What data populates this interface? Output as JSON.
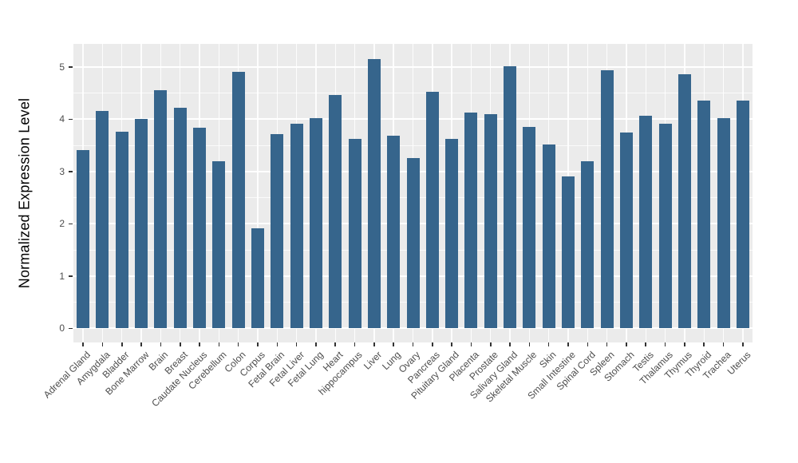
{
  "figure": {
    "y_axis_title": "Normalized Expression Level",
    "colors": {
      "bar": "#36658C",
      "panel_background": "#EBEBEB",
      "grid": "#FFFFFF",
      "tick_text": "#4D4D4D",
      "axis_title_text": "#000000",
      "page_background": "#FFFFFF",
      "tick_mark": "#333333"
    }
  },
  "chart_data": {
    "type": "bar",
    "title": "",
    "xlabel": "",
    "ylabel": "Normalized Expression Level",
    "categories": [
      "Adrenal Gland",
      "Amygdala",
      "Bladder",
      "Bone Marrow",
      "Brain",
      "Breast",
      "Caudate Nucleus",
      "Cerebellum",
      "Colon",
      "Corpus",
      "Fetal Brain",
      "Fetal Liver",
      "Fetal Lung",
      "Heart",
      "hippocampus",
      "Liver",
      "Lung",
      "Ovary",
      "Pancreas",
      "Pituitary Gland",
      "Placenta",
      "Prostate",
      "Salivary Gland",
      "Skeletal Muscle",
      "Skin",
      "Small Intestine",
      "Spinal Cord",
      "Spleen",
      "Stomach",
      "Testis",
      "Thalamus",
      "Thymus",
      "Thyroid",
      "Trachea",
      "Uterus"
    ],
    "values": [
      3.41,
      4.16,
      3.76,
      4.0,
      4.56,
      4.22,
      3.83,
      3.19,
      4.91,
      1.92,
      3.71,
      3.91,
      4.02,
      4.46,
      3.62,
      5.15,
      3.69,
      3.26,
      4.53,
      3.62,
      4.13,
      4.09,
      5.02,
      3.85,
      3.52,
      2.9,
      3.2,
      4.94,
      3.75,
      4.06,
      3.91,
      4.86,
      4.36,
      4.02,
      4.36
    ],
    "y_ticks": [
      0,
      1,
      2,
      3,
      4,
      5
    ],
    "y_minor_ticks": [
      0.5,
      1.5,
      2.5,
      3.5,
      4.5
    ],
    "ylim": [
      0,
      5.15
    ],
    "panel_value_range": [
      -0.27,
      5.44
    ],
    "grid": "on",
    "legend": "none",
    "bar_orientation": "vertical",
    "x_label_angle_degrees": 45
  }
}
